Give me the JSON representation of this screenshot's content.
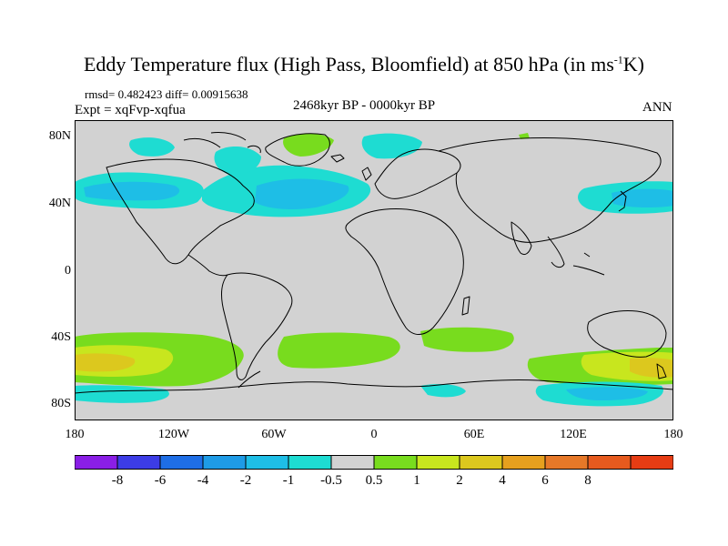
{
  "title_main": "Eddy Temperature flux (High Pass, Bloomfield) at 850 hPa (in ms",
  "title_sup": "-1",
  "title_end": "K)",
  "stats": "rmsd= 0.482423 diff= 0.00915638",
  "expt": "Expt = xqFvp-xqfua",
  "period": "2468kyr BP - 0000kyr BP",
  "season": "ANN",
  "lat_labels": [
    "80N",
    "40N",
    "0",
    "40S",
    "80S"
  ],
  "lon_labels": [
    "180",
    "120W",
    "60W",
    "0",
    "60E",
    "120E",
    "180"
  ],
  "colorbar": {
    "colors": [
      "#8a1ee6",
      "#3c3ce6",
      "#1e6ee6",
      "#1e9be6",
      "#1ebee6",
      "#1edcd2",
      "#d2d2d2",
      "#78dc1e",
      "#c8e61e",
      "#dcc81e",
      "#e6a01e",
      "#e67828",
      "#e65a1e",
      "#e63c14"
    ],
    "labels": [
      "-8",
      "-6",
      "-4",
      "-2",
      "-1",
      "-0.5",
      "0.5",
      "1",
      "2",
      "4",
      "6",
      "8"
    ]
  },
  "colors": {
    "land_ocean_neutral": "#d2d2d2",
    "light_blue": "#1ebee6",
    "cyan": "#1edcd2",
    "green": "#78dc1e",
    "yellow": "#c8e61e",
    "orange": "#dcc81e"
  }
}
